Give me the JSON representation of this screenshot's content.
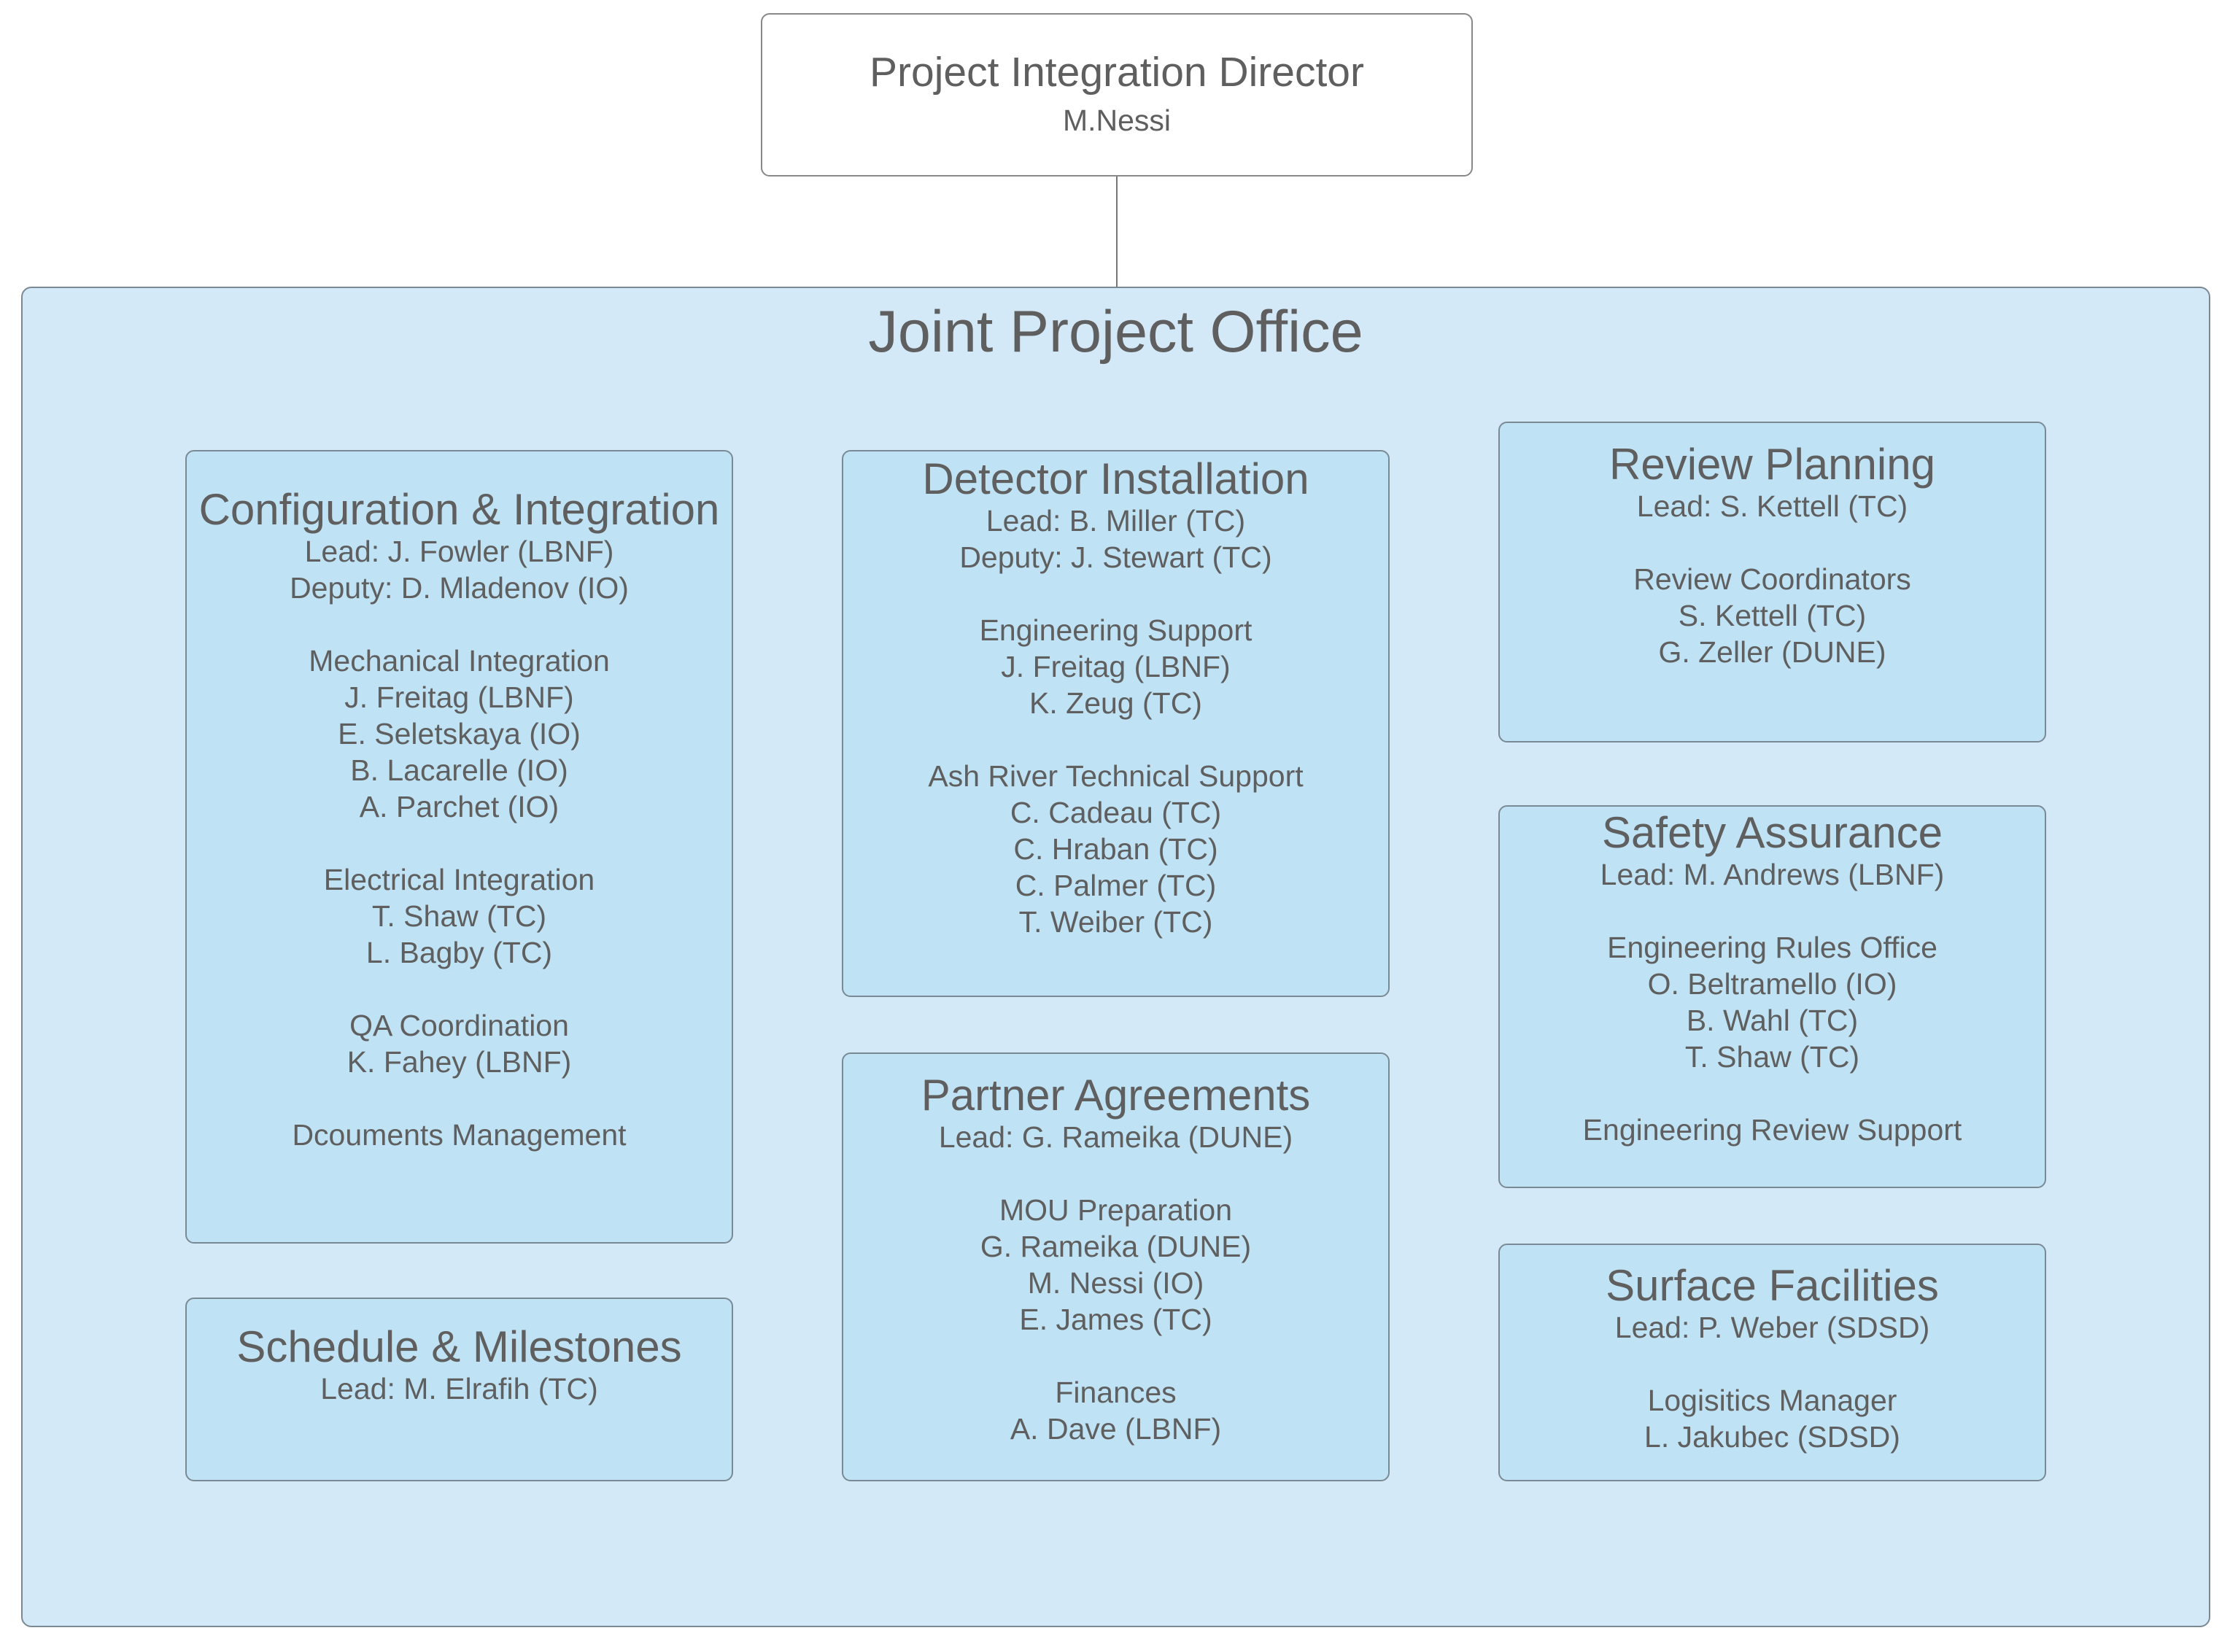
{
  "director": {
    "title": "Project Integration Director",
    "name": "M.Nessi"
  },
  "office": {
    "title": "Joint Project Office"
  },
  "groups": {
    "config": {
      "title": "Configuration & Integration",
      "lines": [
        "Lead: J. Fowler (LBNF)",
        "Deputy: D. Mladenov (IO)",
        "",
        "Mechanical Integration",
        "J. Freitag (LBNF)",
        "E. Seletskaya (IO)",
        "B. Lacarelle (IO)",
        "A. Parchet (IO)",
        "",
        "Electrical Integration",
        "T. Shaw (TC)",
        "L. Bagby (TC)",
        "",
        "QA Coordination",
        "K. Fahey (LBNF)",
        "",
        "Dcouments Management"
      ]
    },
    "schedule": {
      "title": "Schedule & Milestones",
      "lines": [
        "Lead: M. Elrafih (TC)"
      ]
    },
    "detector": {
      "title": "Detector Installation",
      "lines": [
        "Lead: B. Miller (TC)",
        "Deputy: J. Stewart (TC)",
        "",
        "Engineering Support",
        "J. Freitag (LBNF)",
        "K. Zeug (TC)",
        "",
        "Ash River Technical Support",
        "C. Cadeau (TC)",
        "C. Hraban (TC)",
        "C. Palmer (TC)",
        "T. Weiber (TC)"
      ]
    },
    "partner": {
      "title": "Partner Agreements",
      "lines": [
        "Lead: G. Rameika (DUNE)",
        "",
        "MOU Preparation",
        "G. Rameika (DUNE)",
        "M. Nessi (IO)",
        "E. James (TC)",
        "",
        "Finances",
        "A. Dave (LBNF)"
      ]
    },
    "review": {
      "title": "Review Planning",
      "lines": [
        "Lead: S. Kettell (TC)",
        "",
        "Review Coordinators",
        "S. Kettell (TC)",
        "G. Zeller (DUNE)"
      ]
    },
    "safety": {
      "title": "Safety Assurance",
      "lines": [
        "Lead: M. Andrews (LBNF)",
        "",
        "Engineering Rules Office",
        "O. Beltramello (IO)",
        "B. Wahl (TC)",
        "T. Shaw (TC)",
        "",
        "Engineering Review Support"
      ]
    },
    "surface": {
      "title": "Surface Facilities",
      "lines": [
        "Lead: P. Weber (SDSD)",
        "",
        "Logisitics Manager",
        "L. Jakubec (SDSD)"
      ]
    }
  },
  "colors": {
    "office_fill": "#d4e9f7",
    "panel_fill": "#bfe3f5",
    "text": "#5f5f5f",
    "border": "#7a8a95"
  }
}
